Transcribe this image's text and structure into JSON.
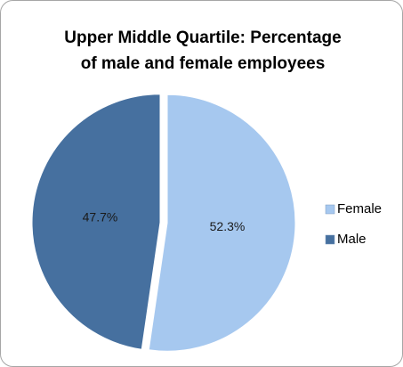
{
  "chart_data": {
    "type": "pie",
    "title": [
      "Upper Middle Quartile: Percentage",
      "of male and female employees"
    ],
    "categories": [
      "Female",
      "Male"
    ],
    "values": [
      52.3,
      47.7
    ],
    "value_labels": [
      "52.3%",
      "47.7%"
    ],
    "colors": [
      "#a6c8ef",
      "#46709f"
    ],
    "legend": "right"
  }
}
